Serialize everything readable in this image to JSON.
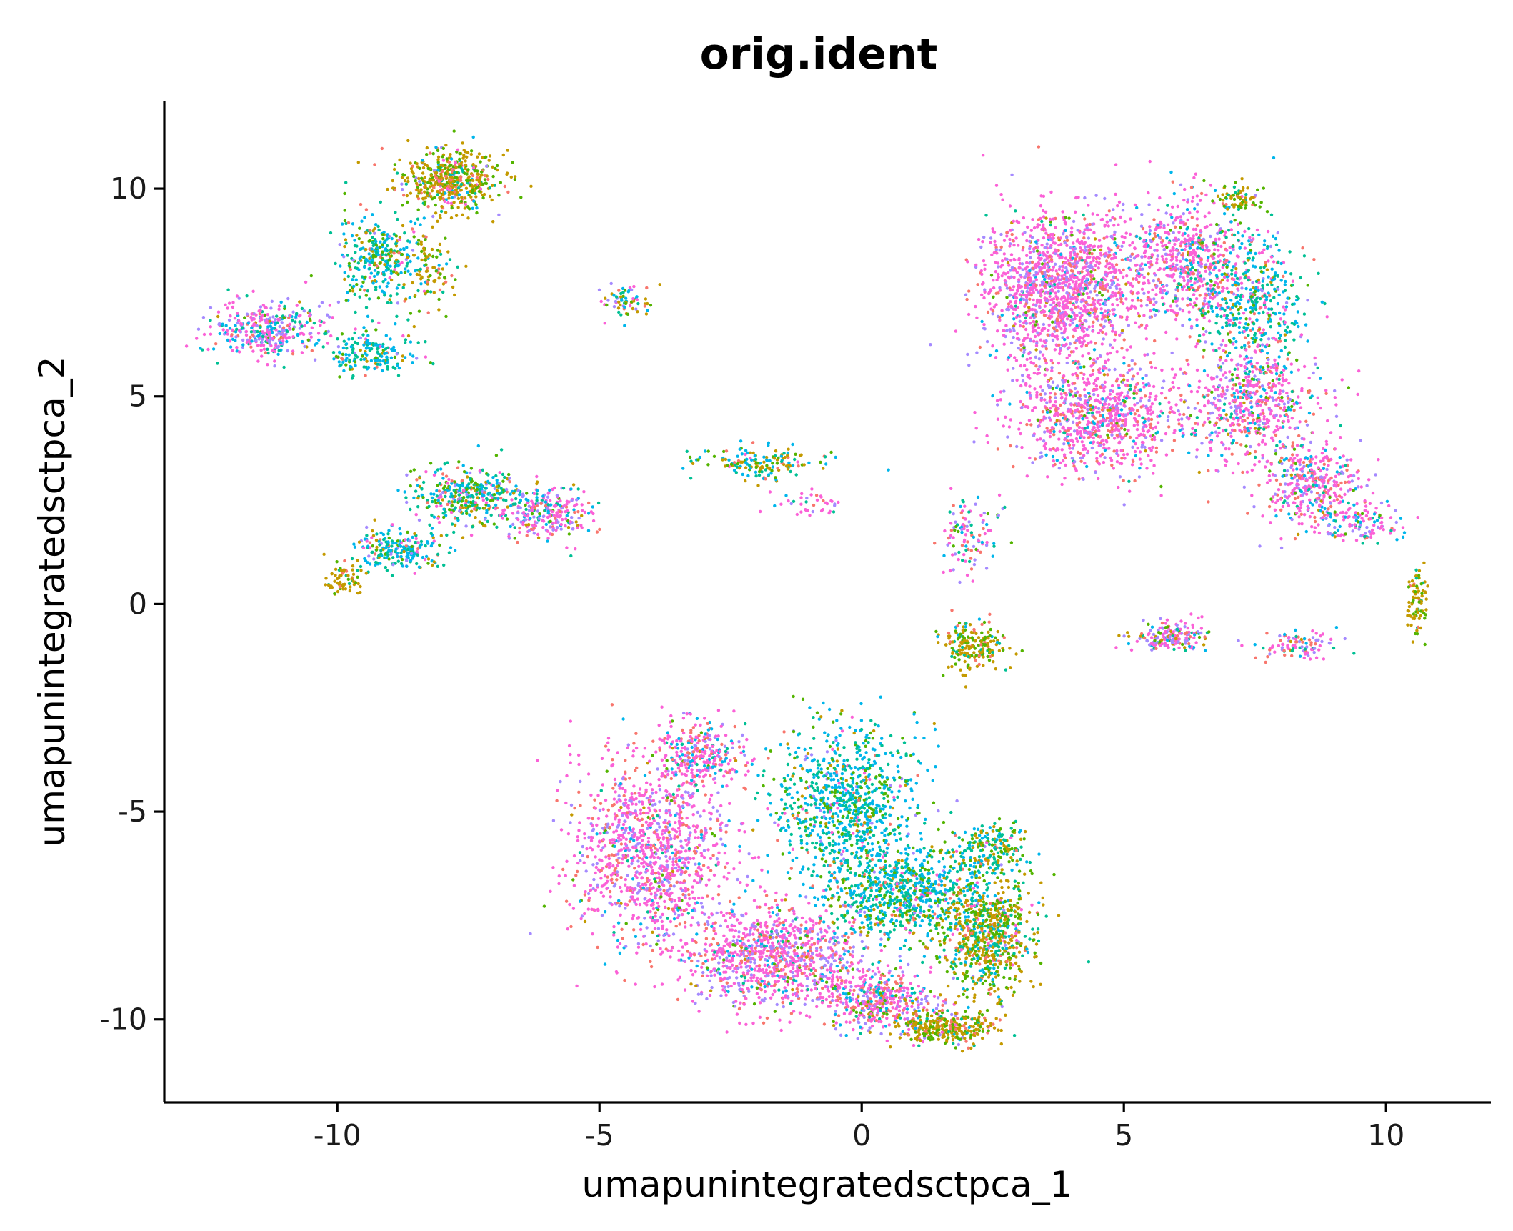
{
  "chart_data": {
    "type": "scatter",
    "title": "orig.ident",
    "xlabel": "umapunintegratedsctpca_1",
    "ylabel": "umapunintegratedsctpca_2",
    "xlim": [
      -13.3,
      12.0
    ],
    "ylim": [
      -12.0,
      12.1
    ],
    "x_ticks": [
      -10,
      -5,
      0,
      5,
      10
    ],
    "x_tick_labels": [
      "-10",
      "-5",
      "0",
      "5",
      "10"
    ],
    "y_ticks": [
      -10,
      -5,
      0,
      5,
      10
    ],
    "y_tick_labels": [
      "-10",
      "-5",
      "0",
      "5",
      "10"
    ],
    "grid": false,
    "legend": "none",
    "point_colors": [
      "#F8766D",
      "#C49A00",
      "#53B400",
      "#00C094",
      "#00B6EB",
      "#A58AFF",
      "#FB61D7"
    ],
    "clusters": [
      {
        "cx": -7.9,
        "cy": 10.2,
        "sx": 0.65,
        "sy": 0.5,
        "n": 520,
        "w": [
          0.12,
          0.45,
          0.25,
          0.05,
          0.05,
          0.03,
          0.05
        ]
      },
      {
        "cx": -9.2,
        "cy": 8.3,
        "sx": 0.55,
        "sy": 0.7,
        "n": 320,
        "w": [
          0.05,
          0.1,
          0.15,
          0.3,
          0.35,
          0.02,
          0.03
        ]
      },
      {
        "cx": -8.2,
        "cy": 8.0,
        "sx": 0.35,
        "sy": 0.6,
        "n": 90,
        "w": [
          0.05,
          0.55,
          0.3,
          0.05,
          0.05,
          0.0,
          0.0
        ]
      },
      {
        "cx": -11.3,
        "cy": 6.6,
        "sx": 0.7,
        "sy": 0.45,
        "n": 380,
        "w": [
          0.05,
          0.03,
          0.04,
          0.1,
          0.15,
          0.28,
          0.35
        ]
      },
      {
        "cx": -9.3,
        "cy": 6.0,
        "sx": 0.55,
        "sy": 0.35,
        "n": 180,
        "w": [
          0.05,
          0.05,
          0.1,
          0.3,
          0.4,
          0.05,
          0.05
        ]
      },
      {
        "cx": -4.5,
        "cy": 7.3,
        "sx": 0.35,
        "sy": 0.3,
        "n": 70,
        "w": [
          0.05,
          0.25,
          0.1,
          0.15,
          0.2,
          0.1,
          0.15
        ]
      },
      {
        "cx": -7.5,
        "cy": 2.6,
        "sx": 0.7,
        "sy": 0.45,
        "n": 380,
        "w": [
          0.05,
          0.12,
          0.18,
          0.25,
          0.25,
          0.05,
          0.1
        ]
      },
      {
        "cx": -6.0,
        "cy": 2.2,
        "sx": 0.55,
        "sy": 0.45,
        "n": 260,
        "w": [
          0.1,
          0.05,
          0.05,
          0.1,
          0.1,
          0.2,
          0.4
        ]
      },
      {
        "cx": -8.8,
        "cy": 1.3,
        "sx": 0.6,
        "sy": 0.3,
        "n": 220,
        "w": [
          0.05,
          0.08,
          0.1,
          0.3,
          0.3,
          0.07,
          0.1
        ]
      },
      {
        "cx": -9.9,
        "cy": 0.6,
        "sx": 0.2,
        "sy": 0.25,
        "n": 70,
        "w": [
          0.1,
          0.7,
          0.15,
          0.05,
          0.0,
          0.0,
          0.0
        ]
      },
      {
        "cx": -1.9,
        "cy": 3.4,
        "sx": 0.75,
        "sy": 0.25,
        "n": 160,
        "w": [
          0.05,
          0.35,
          0.15,
          0.15,
          0.25,
          0.0,
          0.05
        ]
      },
      {
        "cx": -0.9,
        "cy": 2.4,
        "sx": 0.5,
        "sy": 0.25,
        "n": 40,
        "w": [
          0.1,
          0.0,
          0.0,
          0.05,
          0.05,
          0.2,
          0.6
        ]
      },
      {
        "cx": 3.8,
        "cy": 7.6,
        "sx": 1.0,
        "sy": 1.2,
        "n": 1500,
        "w": [
          0.12,
          0.01,
          0.02,
          0.02,
          0.04,
          0.18,
          0.61
        ]
      },
      {
        "cx": 4.5,
        "cy": 4.5,
        "sx": 1.1,
        "sy": 0.9,
        "n": 900,
        "w": [
          0.14,
          0.01,
          0.02,
          0.03,
          0.05,
          0.15,
          0.6
        ]
      },
      {
        "cx": 6.2,
        "cy": 8.3,
        "sx": 0.7,
        "sy": 1.0,
        "n": 600,
        "w": [
          0.12,
          0.01,
          0.02,
          0.04,
          0.1,
          0.16,
          0.55
        ]
      },
      {
        "cx": 7.4,
        "cy": 7.3,
        "sx": 0.7,
        "sy": 1.2,
        "n": 500,
        "w": [
          0.05,
          0.05,
          0.1,
          0.3,
          0.3,
          0.05,
          0.15
        ]
      },
      {
        "cx": 7.5,
        "cy": 4.8,
        "sx": 0.8,
        "sy": 0.9,
        "n": 600,
        "w": [
          0.15,
          0.02,
          0.03,
          0.05,
          0.1,
          0.15,
          0.5
        ]
      },
      {
        "cx": 8.6,
        "cy": 2.8,
        "sx": 0.6,
        "sy": 0.7,
        "n": 400,
        "w": [
          0.15,
          0.02,
          0.03,
          0.05,
          0.1,
          0.15,
          0.5
        ]
      },
      {
        "cx": 7.2,
        "cy": 9.8,
        "sx": 0.25,
        "sy": 0.2,
        "n": 70,
        "w": [
          0.1,
          0.5,
          0.3,
          0.1,
          0.0,
          0.0,
          0.0
        ]
      },
      {
        "cx": 9.6,
        "cy": 1.9,
        "sx": 0.5,
        "sy": 0.3,
        "n": 100,
        "w": [
          0.1,
          0.02,
          0.05,
          0.1,
          0.15,
          0.18,
          0.4
        ]
      },
      {
        "cx": 10.6,
        "cy": 0.0,
        "sx": 0.12,
        "sy": 0.6,
        "n": 80,
        "w": [
          0.05,
          0.6,
          0.3,
          0.05,
          0.0,
          0.0,
          0.0
        ]
      },
      {
        "cx": 2.0,
        "cy": 1.6,
        "sx": 0.4,
        "sy": 0.6,
        "n": 110,
        "w": [
          0.15,
          0.0,
          0.05,
          0.1,
          0.15,
          0.25,
          0.3
        ]
      },
      {
        "cx": 2.1,
        "cy": -1.0,
        "sx": 0.45,
        "sy": 0.4,
        "n": 200,
        "w": [
          0.1,
          0.45,
          0.3,
          0.1,
          0.05,
          0.0,
          0.0
        ]
      },
      {
        "cx": 5.9,
        "cy": -0.8,
        "sx": 0.5,
        "sy": 0.25,
        "n": 180,
        "w": [
          0.1,
          0.1,
          0.1,
          0.05,
          0.1,
          0.2,
          0.35
        ]
      },
      {
        "cx": 8.3,
        "cy": -1.0,
        "sx": 0.5,
        "sy": 0.2,
        "n": 100,
        "w": [
          0.15,
          0.02,
          0.03,
          0.05,
          0.05,
          0.3,
          0.4
        ]
      },
      {
        "cx": -4.0,
        "cy": -6.0,
        "sx": 1.0,
        "sy": 1.5,
        "n": 1200,
        "w": [
          0.16,
          0.01,
          0.02,
          0.02,
          0.04,
          0.2,
          0.55
        ]
      },
      {
        "cx": -1.7,
        "cy": -8.5,
        "sx": 1.1,
        "sy": 0.8,
        "n": 1000,
        "w": [
          0.16,
          0.01,
          0.02,
          0.03,
          0.06,
          0.2,
          0.52
        ]
      },
      {
        "cx": 0.3,
        "cy": -9.5,
        "sx": 0.7,
        "sy": 0.5,
        "n": 450,
        "w": [
          0.15,
          0.05,
          0.05,
          0.05,
          0.1,
          0.15,
          0.45
        ]
      },
      {
        "cx": -3.1,
        "cy": -3.6,
        "sx": 0.6,
        "sy": 0.5,
        "n": 300,
        "w": [
          0.15,
          0.02,
          0.03,
          0.05,
          0.15,
          0.1,
          0.5
        ]
      },
      {
        "cx": -0.3,
        "cy": -4.8,
        "sx": 0.9,
        "sy": 1.2,
        "n": 900,
        "w": [
          0.03,
          0.05,
          0.15,
          0.25,
          0.45,
          0.03,
          0.04
        ]
      },
      {
        "cx": 0.8,
        "cy": -7.0,
        "sx": 1.0,
        "sy": 0.8,
        "n": 800,
        "w": [
          0.04,
          0.08,
          0.15,
          0.28,
          0.37,
          0.03,
          0.05
        ]
      },
      {
        "cx": 2.4,
        "cy": -8.0,
        "sx": 0.6,
        "sy": 0.9,
        "n": 700,
        "w": [
          0.06,
          0.4,
          0.25,
          0.15,
          0.08,
          0.02,
          0.04
        ]
      },
      {
        "cx": 1.6,
        "cy": -10.2,
        "sx": 0.6,
        "sy": 0.3,
        "n": 300,
        "w": [
          0.08,
          0.45,
          0.3,
          0.1,
          0.03,
          0.02,
          0.02
        ]
      },
      {
        "cx": 2.4,
        "cy": -5.9,
        "sx": 0.5,
        "sy": 0.4,
        "n": 200,
        "w": [
          0.05,
          0.2,
          0.2,
          0.25,
          0.25,
          0.02,
          0.03
        ]
      }
    ]
  }
}
